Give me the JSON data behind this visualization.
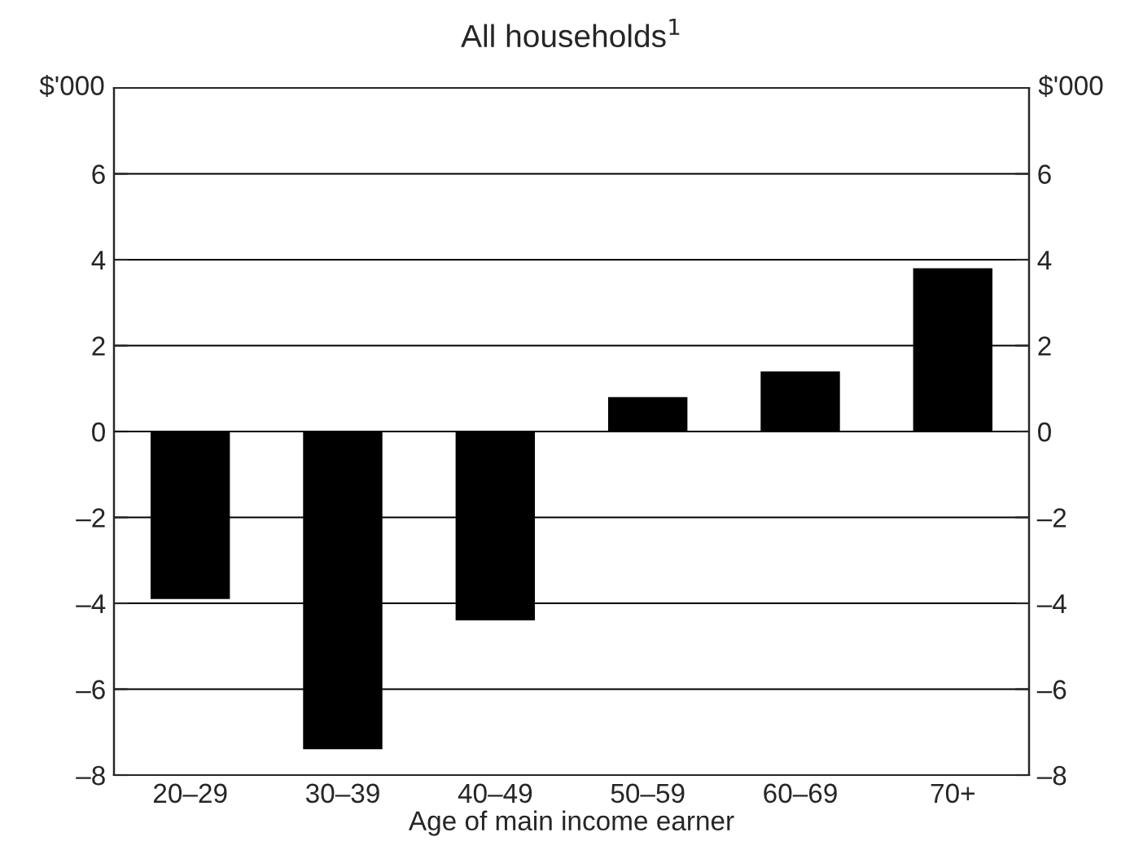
{
  "chart_data": {
    "type": "bar",
    "title": "All households$^{1}$",
    "xlabel": "Age of main income earner",
    "categories": [
      "20–29",
      "30–39",
      "40–49",
      "50–59",
      "60–69",
      "70+"
    ],
    "values": [
      -3.9,
      -7.4,
      -4.4,
      0.8,
      1.4,
      3.8
    ],
    "color": "#000000",
    "ylabel": "$'000",
    "y2label": "$'000",
    "ylim": [
      -8,
      8
    ],
    "yticks": [
      {
        "value": -8,
        "label": "–8"
      },
      {
        "value": -6,
        "label": "–6"
      },
      {
        "value": -4,
        "label": "–4"
      },
      {
        "value": -2,
        "label": "–2"
      },
      0,
      2,
      4,
      6
    ],
    "y2lim": [
      -8,
      8
    ],
    "y2ticks": [
      {
        "value": -8,
        "label": "–8"
      },
      {
        "value": -6,
        "label": "–6"
      },
      {
        "value": -4,
        "label": "–4"
      },
      {
        "value": -2,
        "label": "–2"
      },
      0,
      2,
      4,
      6
    ],
    "grid": "y",
    "legend": false
  }
}
